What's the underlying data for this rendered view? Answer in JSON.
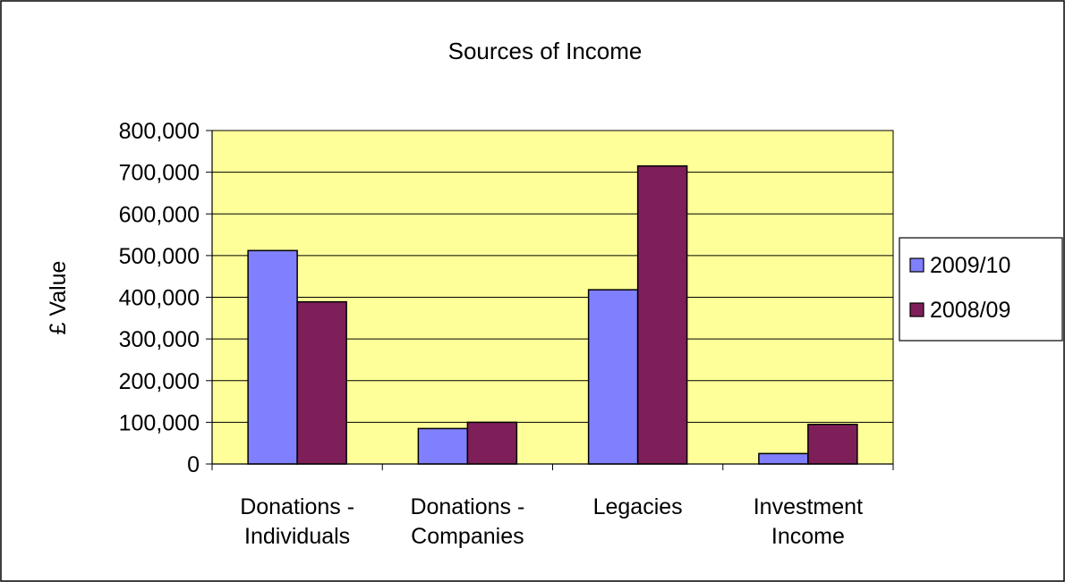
{
  "colors": {
    "plot_bg": "#ffff99",
    "series_2009": "#8080ff",
    "series_2008": "#7f1f5a",
    "grid": "#000000",
    "border": "#000000"
  },
  "chart_data": {
    "type": "bar",
    "title": "Sources of Income",
    "xlabel": "",
    "ylabel": "£ Value",
    "ylim": [
      0,
      800000
    ],
    "yticks": [
      0,
      100000,
      200000,
      300000,
      400000,
      500000,
      600000,
      700000,
      800000
    ],
    "ytick_labels": [
      "0",
      "100,000",
      "200,000",
      "300,000",
      "400,000",
      "500,000",
      "600,000",
      "700,000",
      "800,000"
    ],
    "categories": [
      [
        "Donations -",
        "Individuals"
      ],
      [
        "Donations -",
        "Companies"
      ],
      [
        "Legacies"
      ],
      [
        "Investment",
        "Income"
      ]
    ],
    "series": [
      {
        "name": "2009/10",
        "values": [
          512000,
          85000,
          418000,
          25000
        ]
      },
      {
        "name": "2008/09",
        "values": [
          389000,
          100000,
          715000,
          95000
        ]
      }
    ],
    "grid": true,
    "legend_position": "right"
  }
}
